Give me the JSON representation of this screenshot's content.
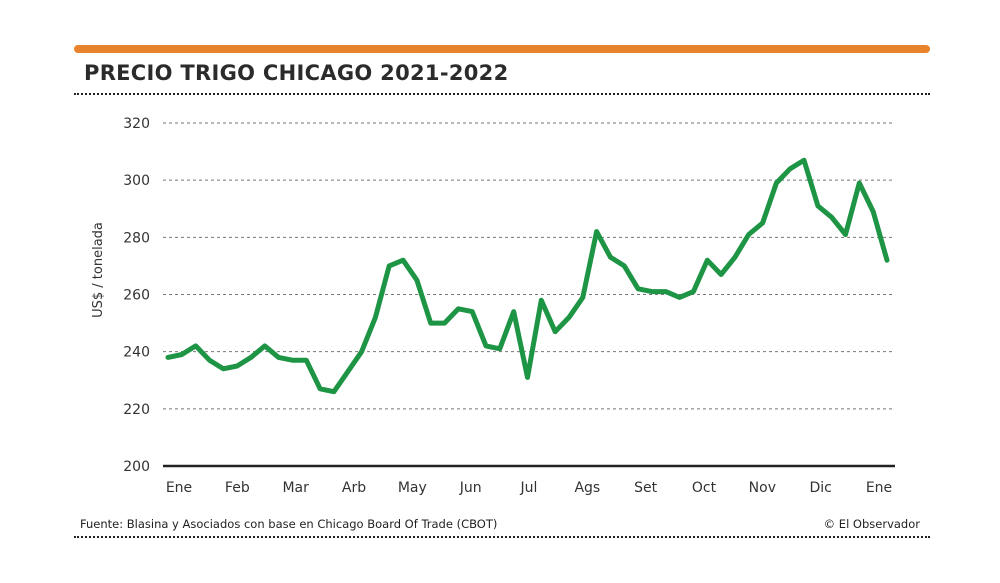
{
  "header": {
    "title": "PRECIO TRIGO CHICAGO 2021-2022",
    "accent_color": "#e8822b"
  },
  "footer": {
    "source": "Fuente: Blasina y Asociados con base en Chicago Board Of Trade (CBOT)",
    "credit": "© El Observador"
  },
  "chart_data": {
    "type": "line",
    "title": "PRECIO TRIGO CHICAGO 2021-2022",
    "ylabel": "US$ / tonelada",
    "xlabel": "",
    "ylim": [
      200,
      320
    ],
    "yticks": [
      200,
      220,
      240,
      260,
      280,
      300,
      320
    ],
    "grid": true,
    "line_color": "#1e9445",
    "month_labels": [
      "Ene",
      "Feb",
      "Mar",
      "Arb",
      "May",
      "Jun",
      "Jul",
      "Ags",
      "Set",
      "Oct",
      "Nov",
      "Dic",
      "Ene"
    ],
    "x_unit": "week",
    "series": [
      {
        "values": [
          238,
          239,
          242,
          237,
          234,
          235,
          238,
          242,
          238,
          237,
          237,
          227,
          226,
          233,
          240,
          252,
          270,
          272,
          265,
          250,
          250,
          255,
          254,
          242,
          241,
          254,
          231,
          258,
          247,
          252,
          259,
          282,
          273,
          270,
          262,
          261,
          261,
          259,
          261,
          272,
          267,
          273,
          281,
          285,
          299,
          304,
          307,
          291,
          287,
          281,
          299,
          289,
          272
        ]
      }
    ]
  }
}
